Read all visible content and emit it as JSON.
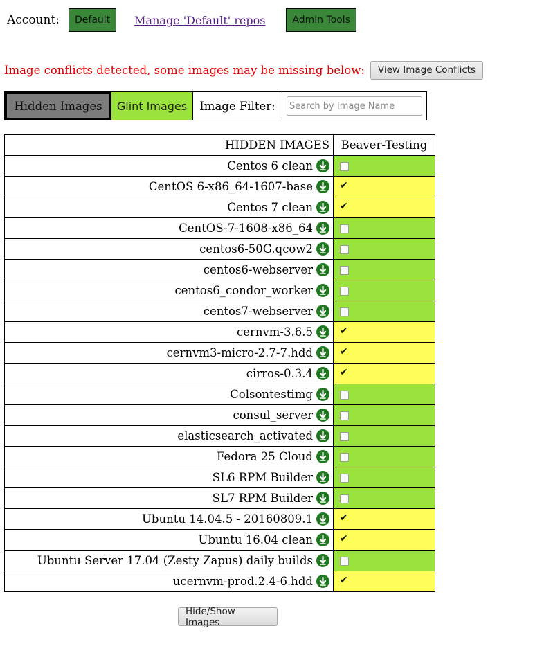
{
  "header": {
    "account_label": "Account:",
    "account_button": "Default",
    "manage_link": "Manage 'Default' repos",
    "admin_button": "Admin Tools"
  },
  "conflicts": {
    "message": "Image conflicts detected, some images may be missing below:",
    "button": "View Image Conflicts"
  },
  "tabs": {
    "hidden": "Hidden Images",
    "glint": "Glint Images",
    "filter_label": "Image Filter:",
    "filter_placeholder": "Search by Image Name",
    "filter_value": ""
  },
  "table": {
    "name_header": "HIDDEN IMAGES",
    "project_header": "Beaver-Testing",
    "rows": [
      {
        "name": "Centos 6 clean",
        "checked": false
      },
      {
        "name": "CentOS 6-x86_64-1607-base",
        "checked": true
      },
      {
        "name": "Centos 7 clean",
        "checked": true
      },
      {
        "name": "CentOS-7-1608-x86_64",
        "checked": false
      },
      {
        "name": "centos6-50G.qcow2",
        "checked": false
      },
      {
        "name": "centos6-webserver",
        "checked": false
      },
      {
        "name": "centos6_condor_worker",
        "checked": false
      },
      {
        "name": "centos7-webserver",
        "checked": false
      },
      {
        "name": "cernvm-3.6.5",
        "checked": true
      },
      {
        "name": "cernvm3-micro-2.7-7.hdd",
        "checked": true
      },
      {
        "name": "cirros-0.3.4",
        "checked": true
      },
      {
        "name": "Colsontestimg",
        "checked": false
      },
      {
        "name": "consul_server",
        "checked": false
      },
      {
        "name": "elasticsearch_activated",
        "checked": false
      },
      {
        "name": "Fedora 25 Cloud",
        "checked": false
      },
      {
        "name": "SL6 RPM Builder",
        "checked": false
      },
      {
        "name": "SL7 RPM Builder",
        "checked": false
      },
      {
        "name": "Ubuntu 14.04.5 - 20160809.1",
        "checked": true
      },
      {
        "name": "Ubuntu 16.04 clean",
        "checked": true
      },
      {
        "name": "Ubuntu Server 17.04 (Zesty Zapus) daily builds",
        "checked": false
      },
      {
        "name": "ucernvm-prod.2.4-6.hdd",
        "checked": true
      }
    ]
  },
  "footer": {
    "hide_show_button": "Hide/Show Images"
  },
  "colors": {
    "checked_bg": "#ffff5a",
    "unchecked_bg": "#9ae23c",
    "conflict_text": "#e00000",
    "account_button_bg": "#3a873a"
  },
  "icons": {
    "row_action": "download-arrow-icon"
  }
}
